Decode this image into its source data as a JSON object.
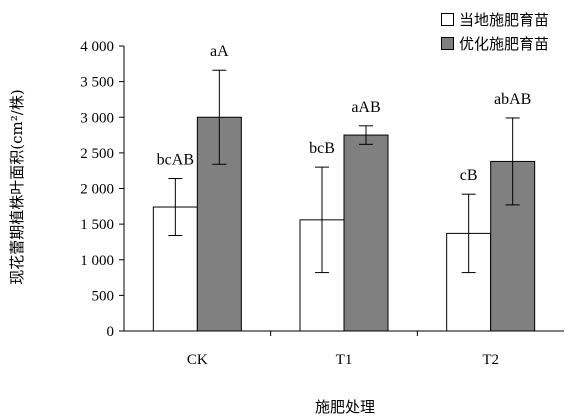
{
  "chart_data": {
    "type": "bar",
    "categories": [
      "CK",
      "T1",
      "T2"
    ],
    "series": [
      {
        "name": "当地施肥育苗",
        "color": "#ffffff",
        "values": [
          1740,
          1560,
          1370
        ],
        "errors": [
          400,
          740,
          550
        ],
        "labels": [
          "bcAB",
          "bcB",
          "cB"
        ]
      },
      {
        "name": "优化施肥育苗",
        "color": "#808080",
        "values": [
          3000,
          2750,
          2380
        ],
        "errors": [
          660,
          130,
          610
        ],
        "labels": [
          "aA",
          "aAB",
          "abAB"
        ]
      }
    ],
    "yticks": [
      "0",
      "500",
      "1 000",
      "1 500",
      "2 000",
      "2 500",
      "3 000",
      "3 500",
      "4 000"
    ],
    "ylim": [
      0,
      4000
    ],
    "xlabel": "施肥处理",
    "ylabel": "现花蕾期植株叶面积(cm²/株)",
    "grid": false,
    "legend_position": "top-right"
  }
}
